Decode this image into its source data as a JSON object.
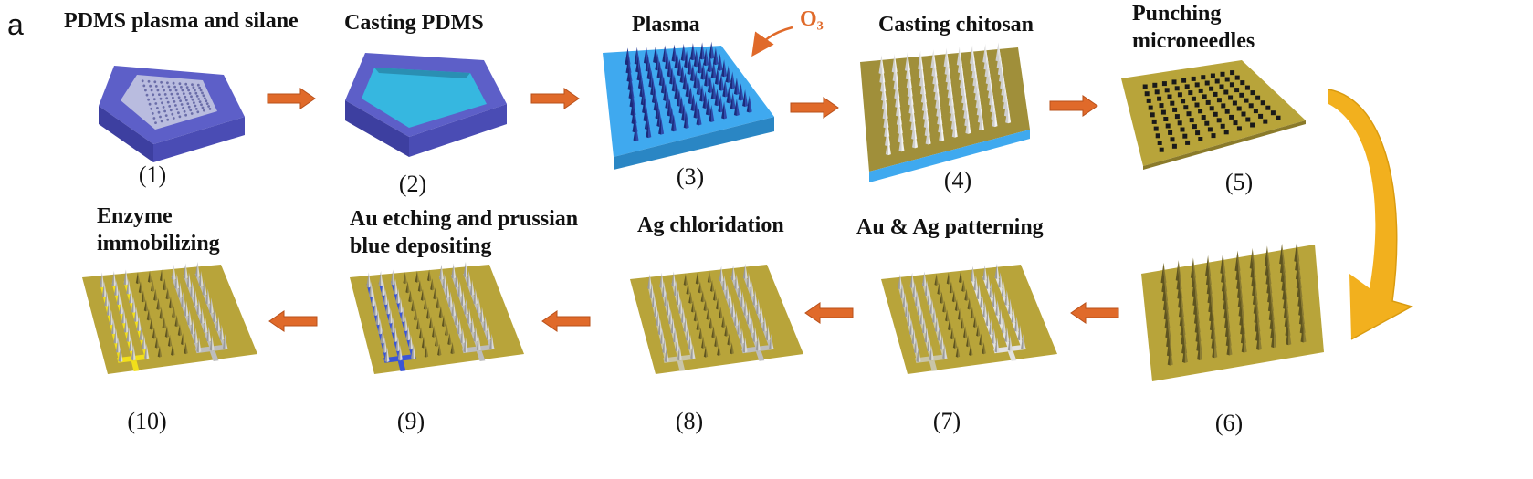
{
  "panel_letter": "a",
  "ozone_label": "O₃",
  "steps": [
    {
      "number": "(1)",
      "title_lines": [
        "PDMS plasma and silane"
      ]
    },
    {
      "number": "(2)",
      "title_lines": [
        "Casting PDMS"
      ]
    },
    {
      "number": "(3)",
      "title_lines": [
        "Plasma"
      ]
    },
    {
      "number": "(4)",
      "title_lines": [
        "Casting chitosan"
      ]
    },
    {
      "number": "(5)",
      "title_lines": [
        "Punching",
        "microneedles"
      ]
    },
    {
      "number": "(6)",
      "title_lines": []
    },
    {
      "number": "(7)",
      "title_lines": [
        "Au & Ag patterning"
      ]
    },
    {
      "number": "(8)",
      "title_lines": [
        "Ag chloridation"
      ]
    },
    {
      "number": "(9)",
      "title_lines": [
        "Au etching and prussian",
        "blue depositing"
      ]
    },
    {
      "number": "(10)",
      "title_lines": [
        "Enzyme",
        "immobilizing"
      ]
    }
  ],
  "colors": {
    "pdms_mold": "#5d5fc8",
    "plasma_blue": "#3fa9ef",
    "chitosan_gold": "#b8a43a",
    "arrow_orange": "#e06a2a",
    "curve_arrow": "#f2b01e",
    "prussian_blue": "#3a55d6",
    "enzyme_yellow": "#f2df1a",
    "ozone_text": "#e06a2a"
  }
}
